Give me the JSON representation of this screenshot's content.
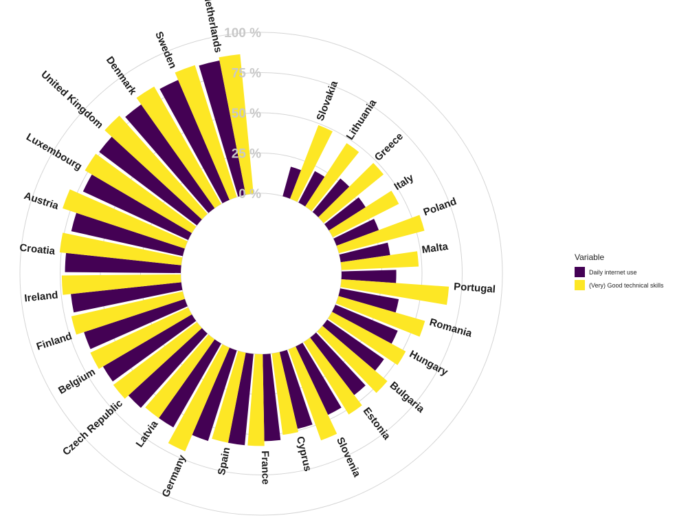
{
  "chart_data": {
    "type": "bar",
    "subtype": "circular-grouped",
    "categories": [
      "Slovakia",
      "Lithuania",
      "Greece",
      "Italy",
      "Poland",
      "Malta",
      "Portugal",
      "Romania",
      "Hungary",
      "Bulgaria",
      "Estonia",
      "Slovenia",
      "Cyprus",
      "France",
      "Spain",
      "Germany",
      "Latvia",
      "Czech Republic",
      "Belgium",
      "Finland",
      "Ireland",
      "Croatia",
      "Austria",
      "Luxembourg",
      "United Kingdom",
      "Denmark",
      "Sweden",
      "Netherlands"
    ],
    "series": [
      {
        "name": "Daily internet use",
        "color": "#440154",
        "values": [
          19,
          22,
          27,
          27,
          28,
          31,
          34,
          37,
          42,
          43,
          45,
          47,
          49,
          54,
          57,
          59,
          60,
          62,
          64,
          66,
          69,
          72,
          71,
          72,
          76,
          79,
          81,
          85
        ]
      },
      {
        "name": "(Very) Good technical skills",
        "color": "#FDE725",
        "values": [
          49,
          47,
          48,
          46,
          55,
          48,
          67,
          56,
          52,
          53,
          53,
          60,
          51,
          57,
          57,
          70,
          60,
          65,
          67,
          71,
          74,
          76,
          80,
          77,
          82,
          84,
          86,
          87
        ]
      }
    ],
    "yticks": [
      "0 %",
      "25 %",
      "50 %",
      "75 %",
      "100 %"
    ],
    "ylim": [
      0,
      100
    ],
    "grid": true,
    "legend": {
      "title": "Variable",
      "position": "right"
    }
  }
}
